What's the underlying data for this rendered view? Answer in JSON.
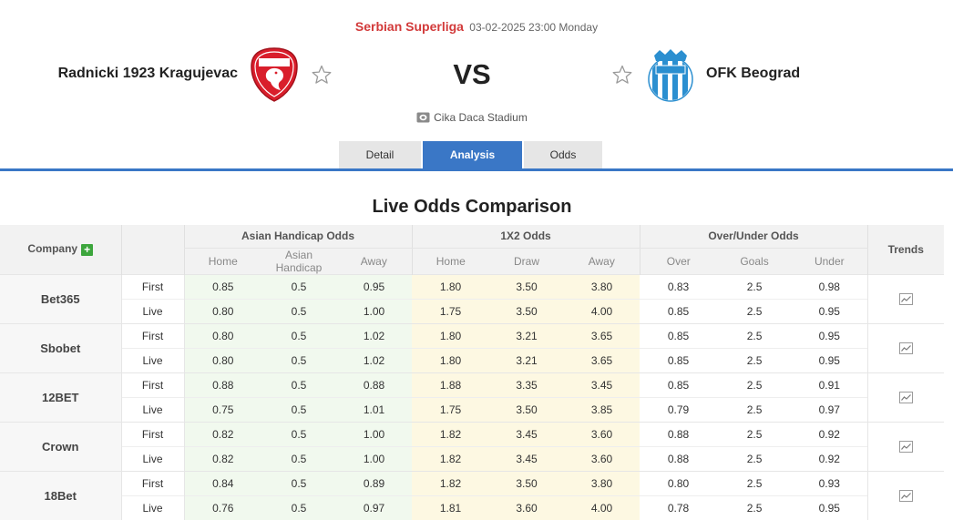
{
  "match": {
    "league": "Serbian Superliga",
    "datetime": "03-02-2025 23:00 Monday",
    "home_team": "Radnicki 1923 Kragujevac",
    "away_team": "OFK Beograd",
    "vs": "VS",
    "venue": "Cika Daca Stadium",
    "home_logo_text": "ФУДБАЛСКИ КЛУБ РАДНИЧКИ 1923",
    "away_logo_text": "BEOGRAD"
  },
  "tabs": [
    {
      "label": "Detail",
      "active": false
    },
    {
      "label": "Analysis",
      "active": true
    },
    {
      "label": "Odds",
      "active": false
    }
  ],
  "odds": {
    "title": "Live Odds Comparison",
    "company_header": "Company",
    "trends_header": "Trends",
    "group_headers": [
      "Asian Handicap Odds",
      "1X2 Odds",
      "Over/Under Odds"
    ],
    "sub_headers": [
      "Home",
      "Asian Handicap",
      "Away",
      "Home",
      "Draw",
      "Away",
      "Over",
      "Goals",
      "Under"
    ],
    "rows": [
      {
        "company": "Bet365",
        "lines": [
          {
            "stage": "First",
            "ah": [
              "0.85",
              "0.5",
              "0.95"
            ],
            "x12": [
              "1.80",
              "3.50",
              "3.80"
            ],
            "ou": [
              "0.83",
              "2.5",
              "0.98"
            ]
          },
          {
            "stage": "Live",
            "ah": [
              "0.80",
              "0.5",
              "1.00"
            ],
            "x12": [
              "1.75",
              "3.50",
              "4.00"
            ],
            "ou": [
              "0.85",
              "2.5",
              "0.95"
            ]
          }
        ]
      },
      {
        "company": "Sbobet",
        "lines": [
          {
            "stage": "First",
            "ah": [
              "0.80",
              "0.5",
              "1.02"
            ],
            "x12": [
              "1.80",
              "3.21",
              "3.65"
            ],
            "ou": [
              "0.85",
              "2.5",
              "0.95"
            ]
          },
          {
            "stage": "Live",
            "ah": [
              "0.80",
              "0.5",
              "1.02"
            ],
            "x12": [
              "1.80",
              "3.21",
              "3.65"
            ],
            "ou": [
              "0.85",
              "2.5",
              "0.95"
            ]
          }
        ]
      },
      {
        "company": "12BET",
        "lines": [
          {
            "stage": "First",
            "ah": [
              "0.88",
              "0.5",
              "0.88"
            ],
            "x12": [
              "1.88",
              "3.35",
              "3.45"
            ],
            "ou": [
              "0.85",
              "2.5",
              "0.91"
            ]
          },
          {
            "stage": "Live",
            "ah": [
              "0.75",
              "0.5",
              "1.01"
            ],
            "x12": [
              "1.75",
              "3.50",
              "3.85"
            ],
            "ou": [
              "0.79",
              "2.5",
              "0.97"
            ]
          }
        ]
      },
      {
        "company": "Crown",
        "lines": [
          {
            "stage": "First",
            "ah": [
              "0.82",
              "0.5",
              "1.00"
            ],
            "x12": [
              "1.82",
              "3.45",
              "3.60"
            ],
            "ou": [
              "0.88",
              "2.5",
              "0.92"
            ]
          },
          {
            "stage": "Live",
            "ah": [
              "0.82",
              "0.5",
              "1.00"
            ],
            "x12": [
              "1.82",
              "3.45",
              "3.60"
            ],
            "ou": [
              "0.88",
              "2.5",
              "0.92"
            ]
          }
        ]
      },
      {
        "company": "18Bet",
        "lines": [
          {
            "stage": "First",
            "ah": [
              "0.84",
              "0.5",
              "0.89"
            ],
            "x12": [
              "1.82",
              "3.50",
              "3.80"
            ],
            "ou": [
              "0.80",
              "2.5",
              "0.93"
            ]
          },
          {
            "stage": "Live",
            "ah": [
              "0.76",
              "0.5",
              "0.97"
            ],
            "x12": [
              "1.81",
              "3.60",
              "4.00"
            ],
            "ou": [
              "0.78",
              "2.5",
              "0.95"
            ]
          }
        ]
      }
    ]
  },
  "colors": {
    "accent_blue": "#3a77c6",
    "league_red": "#d23a3a",
    "ah_bg": "#f1f9ee",
    "x12_bg": "#fdf8e2",
    "plus_green": "#3da63d",
    "home_logo_red": "#d91e2b",
    "away_logo_blue": "#2b8fd0"
  },
  "icons": {
    "favorite": "star-outline-icon",
    "venue": "stadium-icon",
    "add_company": "plus-icon",
    "trend": "line-chart-icon"
  }
}
